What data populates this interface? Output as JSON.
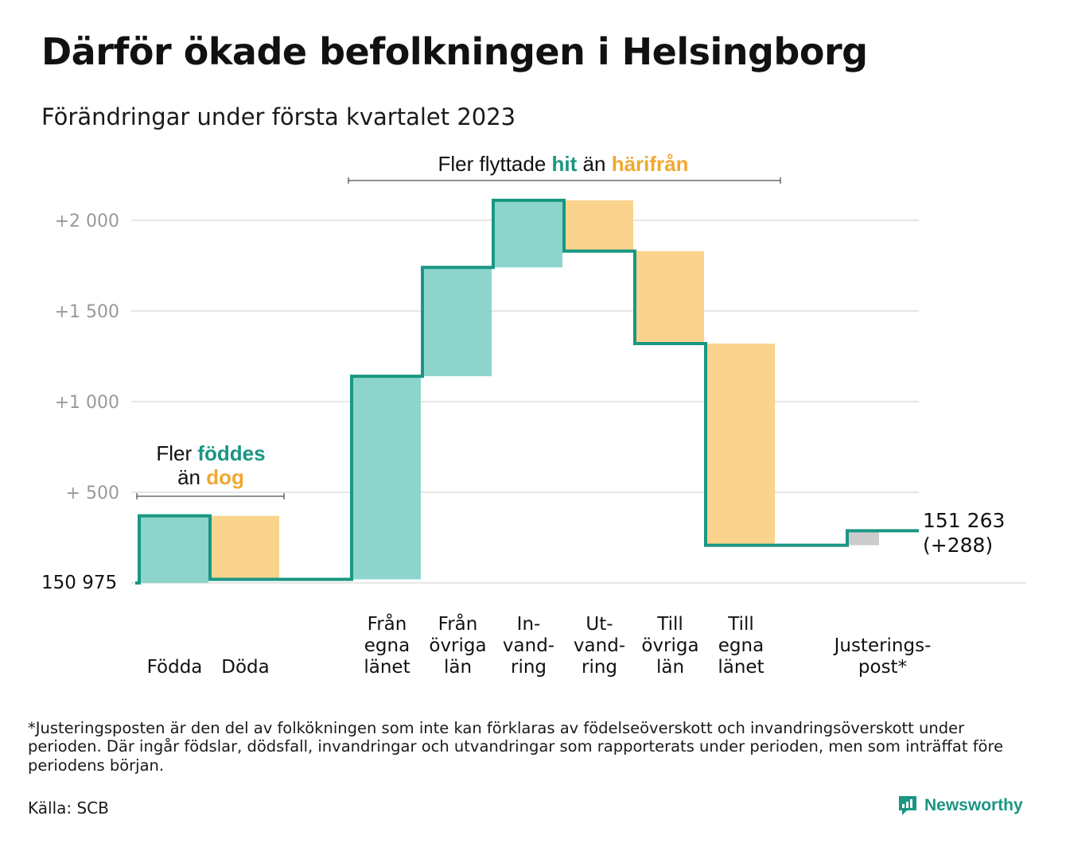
{
  "title": "Därför ökade befolkningen i Helsingborg",
  "subtitle": "Förändringar under första kvartalet 2023",
  "colors": {
    "inflow": "#8dd5cc",
    "outflow": "#fad48c",
    "adjustment": "#cccccc",
    "line": "#1a9683",
    "accent_teal": "#1a9683",
    "accent_orange": "#f0a830",
    "grid": "#dddddd",
    "tick_label": "#999999"
  },
  "chart_data": {
    "type": "waterfall",
    "baseline_value": 150975,
    "baseline_label": "150 975",
    "ylim": [
      0,
      2100
    ],
    "yticks": [
      {
        "value": 500,
        "label": "+ 500"
      },
      {
        "value": 1000,
        "label": "+1 000"
      },
      {
        "value": 1500,
        "label": "+1 500"
      },
      {
        "value": 2000,
        "label": "+2 000"
      }
    ],
    "steps": [
      {
        "lines": [
          "Födda"
        ],
        "change": 370,
        "kind": "inflow"
      },
      {
        "lines": [
          "Döda"
        ],
        "change": -350,
        "kind": "outflow"
      },
      {
        "lines": [
          "Från",
          "egna",
          "länet"
        ],
        "change": 1120,
        "kind": "inflow"
      },
      {
        "lines": [
          "Från",
          "övriga",
          "län"
        ],
        "change": 600,
        "kind": "inflow"
      },
      {
        "lines": [
          "In-",
          "vand-",
          "ring"
        ],
        "change": 370,
        "kind": "inflow"
      },
      {
        "lines": [
          "Ut-",
          "vand-",
          "ring"
        ],
        "change": -280,
        "kind": "outflow"
      },
      {
        "lines": [
          "Till",
          "övriga",
          "län"
        ],
        "change": -510,
        "kind": "outflow"
      },
      {
        "lines": [
          "Till",
          "egna",
          "länet"
        ],
        "change": -1112,
        "kind": "outflow"
      },
      {
        "lines": [
          "Justerings-",
          "post*"
        ],
        "change": 80,
        "kind": "adjustment"
      }
    ],
    "end_total_label": "151 263",
    "end_change_label": "(+288)",
    "annotations": {
      "births_deaths": {
        "line1_a": "Fler ",
        "line1_b": "föddes",
        "line2_a": "än ",
        "line2_b": "dog"
      },
      "migration": {
        "part_a": "Fler flyttade ",
        "part_b": "hit",
        "part_c": " än ",
        "part_d": "härifrån"
      }
    }
  },
  "footnote": "*Justeringsposten är den del av folkökningen som inte kan förklaras av födelseöverskott och invandringsöverskott under perioden. Där ingår födslar, dödsfall, invandringar och utvandringar som rapporterats under perioden, men som inträffat före periodens början.",
  "source": "Källa: SCB",
  "brand": "Newsworthy"
}
